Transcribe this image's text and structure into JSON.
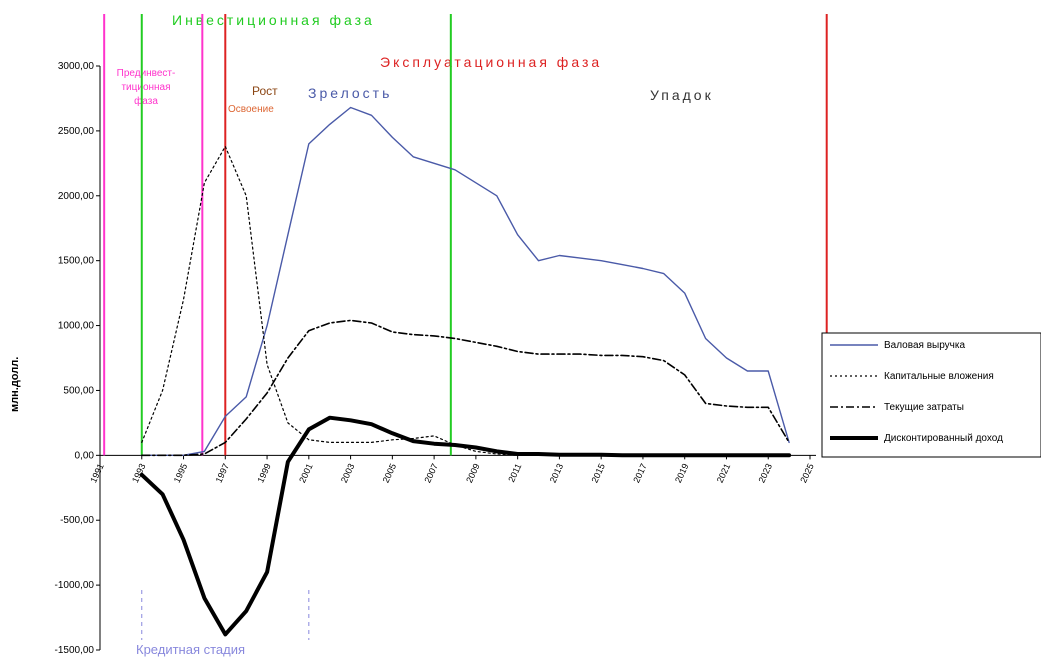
{
  "chart_data": {
    "type": "line",
    "ylabel": "млн.долл.",
    "ylim": [
      -1500,
      3000
    ],
    "y_ticks": [
      "3000,00",
      "2500,00",
      "2000,00",
      "1500,00",
      "1000,00",
      "500,00",
      "0,00",
      "-500,00",
      "-1000,00",
      "-1500,00"
    ],
    "x_ticks": [
      "1991",
      "1993",
      "1995",
      "1997",
      "1999",
      "2001",
      "2003",
      "2005",
      "2007",
      "2009",
      "2011",
      "2013",
      "2015",
      "2017",
      "2019",
      "2021",
      "2023",
      "2025"
    ],
    "x": [
      1991,
      1992,
      1993,
      1994,
      1995,
      1996,
      1997,
      1998,
      1999,
      2000,
      2001,
      2002,
      2003,
      2004,
      2005,
      2006,
      2007,
      2008,
      2009,
      2010,
      2011,
      2012,
      2013,
      2014,
      2015,
      2016,
      2017,
      2018,
      2019,
      2020,
      2021,
      2022,
      2023,
      2024,
      2025
    ],
    "series": [
      {
        "name": "Валовая выручка",
        "color": "#4a5aa8",
        "style": "solid",
        "values": [
          null,
          null,
          0,
          0,
          0,
          30,
          300,
          450,
          1000,
          1700,
          2400,
          2550,
          2680,
          2620,
          2450,
          2300,
          2250,
          2200,
          2100,
          2000,
          1700,
          1500,
          1540,
          1520,
          1500,
          1470,
          1440,
          1400,
          1250,
          900,
          750,
          650,
          650,
          100,
          null
        ]
      },
      {
        "name": "Капитальные вложения",
        "color": "#000000",
        "style": "dotted",
        "values": [
          null,
          null,
          100,
          500,
          1200,
          2100,
          2380,
          2000,
          700,
          250,
          120,
          100,
          100,
          100,
          120,
          130,
          150,
          80,
          30,
          10,
          0,
          0,
          0,
          0,
          0,
          0,
          0,
          0,
          0,
          0,
          0,
          0,
          0,
          0,
          null
        ]
      },
      {
        "name": "Текущие затраты",
        "color": "#000000",
        "style": "dashdot",
        "values": [
          null,
          null,
          0,
          0,
          0,
          10,
          100,
          280,
          480,
          750,
          960,
          1020,
          1040,
          1020,
          950,
          930,
          920,
          900,
          870,
          840,
          800,
          780,
          780,
          780,
          770,
          770,
          760,
          730,
          620,
          400,
          380,
          370,
          370,
          100,
          null
        ]
      },
      {
        "name": "Дисконтированный доход",
        "color": "#000000",
        "style": "thick",
        "values": [
          null,
          null,
          -150,
          -300,
          -650,
          -1100,
          -1380,
          -1200,
          -900,
          -50,
          200,
          290,
          270,
          240,
          170,
          110,
          90,
          80,
          60,
          30,
          10,
          10,
          5,
          5,
          5,
          0,
          0,
          0,
          0,
          0,
          0,
          0,
          0,
          0,
          null
        ]
      }
    ],
    "phase_lines": [
      {
        "x": 1991.2,
        "color": "#ff33cc"
      },
      {
        "x": 1993,
        "color": "#22cc22"
      },
      {
        "x": 1995.9,
        "color": "#ff33cc"
      },
      {
        "x": 1997,
        "color": "#dd2222"
      },
      {
        "x": 2007.8,
        "color": "#22cc22"
      },
      {
        "x": 2025.8,
        "color": "#dd2222"
      }
    ],
    "dashed_markers": [
      {
        "x": 1993,
        "color": "#8888dd"
      },
      {
        "x": 2001,
        "color": "#8888dd"
      }
    ],
    "legend_placement": "right",
    "grid": false
  },
  "labels": {
    "investment_phase": "Инвестиционная  фаза",
    "operation_phase": "Эксплуатационная  фаза",
    "preinvest_line1": "Прединвест-",
    "preinvest_line2": "тиционная",
    "preinvest_line3": "фаза",
    "growth": "Рост",
    "development": "Освоение",
    "maturity": "Зрелость",
    "decline": "Упадок",
    "credit_stage": "Кредитная стадия"
  },
  "colors": {
    "investment_phase": "#22cc22",
    "operation_phase": "#dd2222",
    "preinvest": "#ff33cc",
    "growth": "#8b4513",
    "development": "#dd6633",
    "maturity": "#4a5aa8",
    "decline": "#333333",
    "credit_stage": "#8888dd"
  }
}
